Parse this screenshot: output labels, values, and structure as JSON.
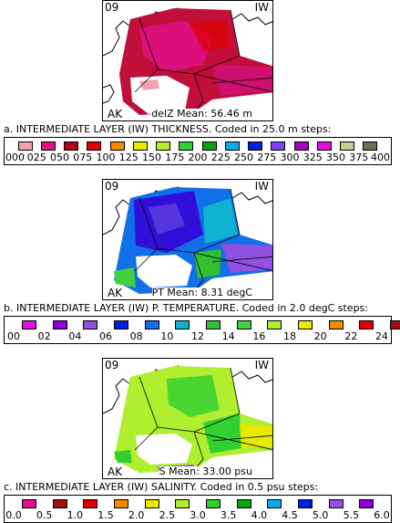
{
  "panels": [
    {
      "region_label": "09",
      "layer_code": "IW",
      "area_label": "AK",
      "stat_text": "delZ Mean: 56.46 m",
      "caption": "a. INTERMEDIATE LAYER (IW) THICKNESS. Coded in 25.0 m steps:",
      "legend": {
        "colors": [
          "#f4a0b0",
          "#e0108a",
          "#b00020",
          "#e00000",
          "#f08c00",
          "#e8e800",
          "#b0ee30",
          "#30d030",
          "#10a010",
          "#10a8e8",
          "#0020e0",
          "#8040f0",
          "#a000c0",
          "#e010e0",
          "#c8c890",
          "#707050"
        ],
        "labels": [
          "000",
          "025",
          "050",
          "075",
          "100",
          "125",
          "150",
          "175",
          "200",
          "225",
          "250",
          "275",
          "300",
          "325",
          "350",
          "375",
          "400"
        ]
      }
    },
    {
      "region_label": "09",
      "layer_code": "IW",
      "area_label": "AK",
      "stat_text": "PT Mean:   8.31 degC",
      "caption": "b. INTERMEDIATE LAYER (IW) P. TEMPERATURE. Coded in  2.0 degC steps:",
      "legend": {
        "colors": [
          "#e010e0",
          "#9000d0",
          "#9050e0",
          "#0020e0",
          "#1070e8",
          "#10b0d0",
          "#30c030",
          "#40d040",
          "#b0ee30",
          "#e8e800",
          "#f08c00",
          "#e00000",
          "#a01010"
        ],
        "labels": [
          "00",
          "02",
          "04",
          "06",
          "08",
          "10",
          "12",
          "14",
          "16",
          "18",
          "20",
          "22",
          "24"
        ]
      }
    },
    {
      "region_label": "09",
      "layer_code": "IW",
      "area_label": "AK",
      "stat_text": "S Mean: 33.00 psu",
      "caption": "c. INTERMEDIATE LAYER (IW) SALINITY. Coded in  0.5 psu steps:",
      "legend": {
        "colors": [
          "#e0108a",
          "#a01010",
          "#e00000",
          "#f08c00",
          "#e8e800",
          "#b0ee30",
          "#30d030",
          "#10a010",
          "#10a8e8",
          "#0020e0",
          "#9050e0",
          "#9000d0"
        ],
        "labels": [
          "0.0",
          "0.5",
          "1.0",
          "1.5",
          "2.0",
          "2.5",
          "3.0",
          "3.5",
          "4.0",
          "4.5",
          "5.0",
          "5.5",
          "6.0"
        ]
      }
    }
  ]
}
